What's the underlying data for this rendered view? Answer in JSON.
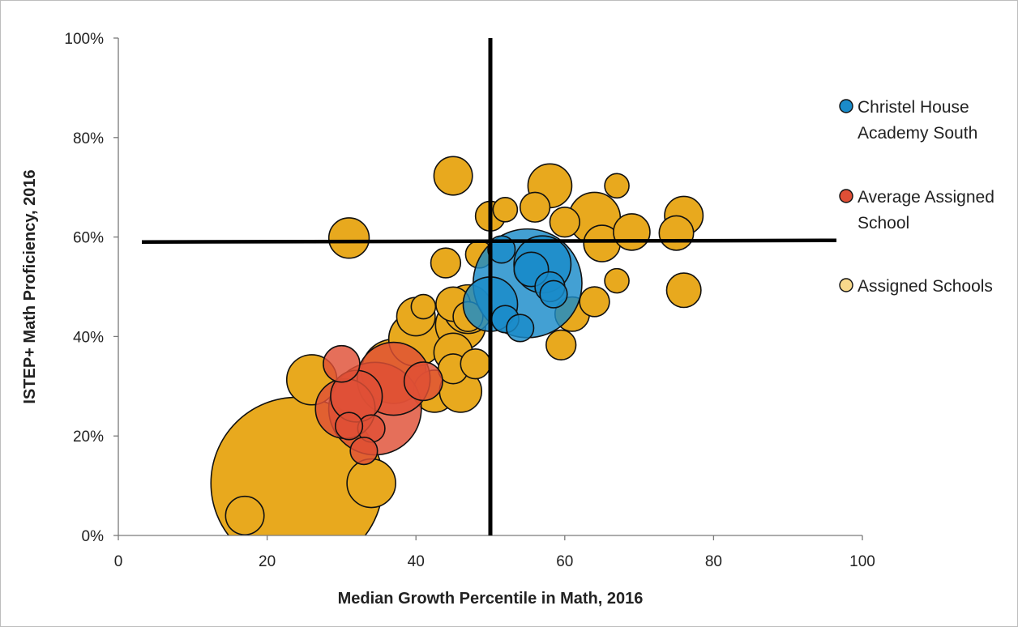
{
  "chart_data": {
    "type": "scatter",
    "subtype": "bubble",
    "title": "",
    "xlabel": "Median Growth Percentile in Math, 2016",
    "ylabel": "ISTEP+ Math Proficiency, 2016",
    "xlim": [
      0,
      100
    ],
    "ylim": [
      0,
      100
    ],
    "x_ticks": [
      "0",
      "20",
      "40",
      "60",
      "80",
      "100"
    ],
    "y_ticks": [
      "0%",
      "20%",
      "40%",
      "60%",
      "80%",
      "100%"
    ],
    "grid": false,
    "legend_position": "right",
    "reference_lines": {
      "vertical_x": 50,
      "horizontal_y": 59
    },
    "colors": {
      "Christel House Academy South": "#1a8bc9",
      "Average Assigned School": "#df4f36",
      "Assigned Schools": "#e8a91e"
    },
    "legend": [
      {
        "label_lines": [
          "Christel House",
          "Academy South"
        ],
        "color": "#1a8bc9"
      },
      {
        "label_lines": [
          "Average Assigned",
          "School"
        ],
        "color": "#df4f36"
      },
      {
        "label_lines": [
          "Assigned Schools"
        ],
        "color": "#f8d98c"
      }
    ],
    "series": [
      {
        "name": "Assigned Schools",
        "color": "#e8a91e",
        "points": [
          {
            "x": 24,
            "y": 10.5,
            "size": 200
          },
          {
            "x": 17,
            "y": 4,
            "size": 10
          },
          {
            "x": 34,
            "y": 10.5,
            "size": 16
          },
          {
            "x": 31,
            "y": 59.8,
            "size": 11
          },
          {
            "x": 26,
            "y": 31.3,
            "size": 17
          },
          {
            "x": 37,
            "y": 33,
            "size": 28
          },
          {
            "x": 40,
            "y": 39.5,
            "size": 20
          },
          {
            "x": 40,
            "y": 44,
            "size": 10
          },
          {
            "x": 41,
            "y": 46,
            "size": 4
          },
          {
            "x": 42.5,
            "y": 29,
            "size": 12
          },
          {
            "x": 46,
            "y": 29,
            "size": 12
          },
          {
            "x": 45,
            "y": 72.3,
            "size": 10
          },
          {
            "x": 44,
            "y": 54.8,
            "size": 6
          },
          {
            "x": 45,
            "y": 46.5,
            "size": 8
          },
          {
            "x": 46,
            "y": 42.3,
            "size": 17
          },
          {
            "x": 47,
            "y": 45.5,
            "size": 16
          },
          {
            "x": 45,
            "y": 36.8,
            "size": 10
          },
          {
            "x": 45,
            "y": 33.5,
            "size": 6
          },
          {
            "x": 48,
            "y": 34.5,
            "size": 6
          },
          {
            "x": 47,
            "y": 44,
            "size": 6
          },
          {
            "x": 48.5,
            "y": 56.5,
            "size": 5
          },
          {
            "x": 50,
            "y": 64.2,
            "size": 6
          },
          {
            "x": 52,
            "y": 65.5,
            "size": 4
          },
          {
            "x": 56,
            "y": 66,
            "size": 6
          },
          {
            "x": 58,
            "y": 70.3,
            "size": 13
          },
          {
            "x": 60,
            "y": 63,
            "size": 6
          },
          {
            "x": 64,
            "y": 63.8,
            "size": 18
          },
          {
            "x": 65,
            "y": 58.7,
            "size": 9
          },
          {
            "x": 67,
            "y": 70.3,
            "size": 4
          },
          {
            "x": 69,
            "y": 61,
            "size": 9
          },
          {
            "x": 75,
            "y": 60.8,
            "size": 8
          },
          {
            "x": 76,
            "y": 64.3,
            "size": 10
          },
          {
            "x": 76,
            "y": 49.3,
            "size": 8
          },
          {
            "x": 61,
            "y": 44.5,
            "size": 8
          },
          {
            "x": 64,
            "y": 47,
            "size": 6
          },
          {
            "x": 67,
            "y": 51.2,
            "size": 4
          },
          {
            "x": 59.5,
            "y": 38.3,
            "size": 6
          }
        ]
      },
      {
        "name": "Average Assigned School",
        "color": "#df4f36",
        "points": [
          {
            "x": 34.5,
            "y": 25.5,
            "size": 58
          },
          {
            "x": 37,
            "y": 31.5,
            "size": 36
          },
          {
            "x": 30.5,
            "y": 25.5,
            "size": 24
          },
          {
            "x": 32,
            "y": 28,
            "size": 18
          },
          {
            "x": 30,
            "y": 34.5,
            "size": 9
          },
          {
            "x": 41,
            "y": 31,
            "size": 10
          },
          {
            "x": 34,
            "y": 21.5,
            "size": 5
          },
          {
            "x": 31,
            "y": 22,
            "size": 5
          },
          {
            "x": 33,
            "y": 17,
            "size": 5
          }
        ]
      },
      {
        "name": "Christel House Academy South",
        "color": "#1a8bc9",
        "points": [
          {
            "x": 55,
            "y": 50.7,
            "size": 80
          },
          {
            "x": 57,
            "y": 54.5,
            "size": 22
          },
          {
            "x": 50,
            "y": 46.5,
            "size": 20
          },
          {
            "x": 55.5,
            "y": 53.5,
            "size": 8
          },
          {
            "x": 58,
            "y": 50,
            "size": 6
          },
          {
            "x": 58.5,
            "y": 48.5,
            "size": 5
          },
          {
            "x": 52,
            "y": 43.5,
            "size": 5
          },
          {
            "x": 54,
            "y": 41.7,
            "size": 5
          },
          {
            "x": 51.5,
            "y": 57.5,
            "size": 5
          }
        ]
      }
    ]
  }
}
